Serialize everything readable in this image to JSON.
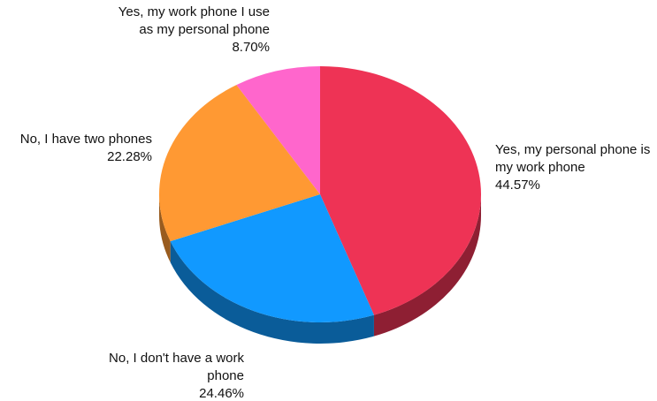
{
  "chart_data": {
    "type": "pie",
    "slices": [
      {
        "label_lines": [
          "Yes, my personal phone is",
          "my work phone"
        ],
        "value": 44.57,
        "value_text": "44.57%",
        "color": "#ee3355",
        "side_color": "#8e1f33"
      },
      {
        "label_lines": [
          "No, I don't have a work",
          "phone"
        ],
        "value": 24.46,
        "value_text": "24.46%",
        "color": "#1199ff",
        "side_color": "#0a5c99"
      },
      {
        "label_lines": [
          "No, I have two phones"
        ],
        "value": 22.28,
        "value_text": "22.28%",
        "color": "#ff9933",
        "side_color": "#995c1f"
      },
      {
        "label_lines": [
          "Yes, my work phone I use",
          "as my personal phone"
        ],
        "value": 8.7,
        "value_text": "8.70%",
        "color": "#ff66cc",
        "side_color": "#993d7a"
      }
    ],
    "start_angle": "12 o'clock",
    "direction": "clockwise",
    "style": "3d-pie",
    "legend": "none"
  }
}
